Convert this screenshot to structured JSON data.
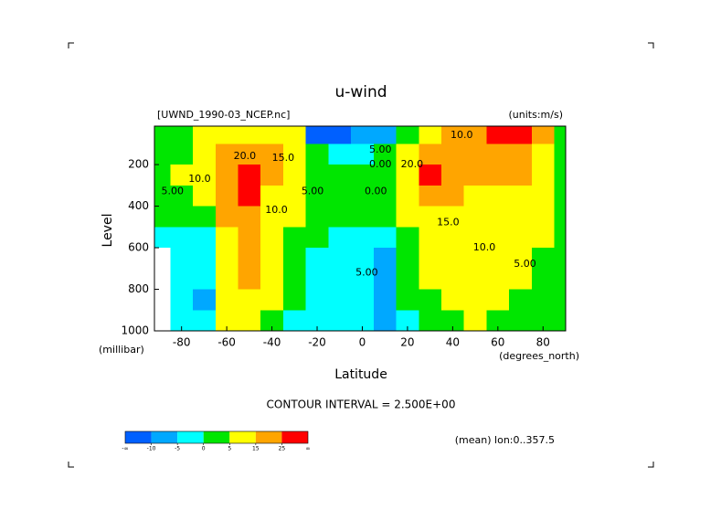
{
  "chart_data": {
    "type": "contour",
    "title": "u-wind",
    "dataset": "[UWND_1990-03_NCEP.nc]",
    "units": "(units:m/s)",
    "x_label": "Latitude",
    "x_unit": "(degrees_north)",
    "y_label": "Level",
    "y_unit": "(millibar)",
    "contour_interval": "CONTOUR INTERVAL = 2.500E+00",
    "note": "(mean) lon:0..357.5",
    "xlim": [
      -92,
      90
    ],
    "ylim": [
      15,
      1000
    ],
    "xticks": [
      -80,
      -60,
      -40,
      -20,
      0,
      20,
      40,
      60,
      80
    ],
    "yticks": [
      200,
      400,
      600,
      800,
      1000
    ],
    "x": [
      -90,
      -80,
      -70,
      -60,
      -50,
      -40,
      -30,
      -20,
      -10,
      0,
      10,
      20,
      30,
      40,
      50,
      60,
      70,
      80,
      90
    ],
    "y": [
      50,
      150,
      250,
      350,
      450,
      550,
      650,
      750,
      850,
      950
    ],
    "z": [
      [
        2,
        3,
        5,
        10,
        14,
        10,
        6,
        -12,
        -12,
        -10,
        -6,
        3,
        12,
        18,
        20,
        25,
        30,
        20,
        4
      ],
      [
        2,
        4,
        7,
        17,
        22,
        18,
        12,
        3,
        -2,
        -2,
        2,
        8,
        24,
        20,
        18,
        20,
        22,
        14,
        4
      ],
      [
        2,
        5,
        9,
        20,
        27,
        16,
        10,
        4,
        1,
        1,
        3,
        10,
        28,
        20,
        16,
        15,
        16,
        10,
        3
      ],
      [
        1,
        4,
        7,
        18,
        26,
        13,
        7,
        3,
        1,
        1,
        2,
        7,
        18,
        17,
        14,
        12,
        12,
        8,
        3
      ],
      [
        1,
        3,
        4,
        16,
        22,
        11,
        5,
        2,
        0,
        0,
        1,
        5,
        12,
        13,
        12,
        10,
        9,
        6,
        2
      ],
      [
        -2,
        -3,
        -2,
        14,
        18,
        9,
        4,
        1,
        -1,
        -2,
        -2,
        3,
        9,
        10,
        10,
        9,
        7,
        5,
        2
      ],
      [
        null,
        -3,
        -3,
        13,
        16,
        8,
        3,
        -1,
        -2,
        -3,
        -6,
        2,
        7,
        8,
        9,
        8,
        6,
        4,
        2
      ],
      [
        null,
        -4,
        -5,
        11,
        15,
        7,
        2,
        -2,
        -3,
        -4,
        -8,
        1,
        5,
        7,
        8,
        7,
        5,
        3,
        1
      ],
      [
        null,
        -4,
        -6,
        9,
        12,
        6,
        1,
        -3,
        -3,
        -4,
        -8,
        0,
        3,
        5,
        7,
        6,
        4,
        2,
        1
      ],
      [
        null,
        -3,
        -3,
        5,
        8,
        4,
        -1,
        -3,
        -2,
        -3,
        -6,
        -1,
        2,
        3,
        6,
        4,
        3,
        2,
        1
      ]
    ],
    "colorbar": {
      "ticks": [
        -10,
        -5,
        0,
        5,
        15,
        25
      ],
      "low_label": "-∞",
      "high_label": "∞",
      "colors": [
        "#0060ff",
        "#00a8ff",
        "#00ffff",
        "#00e600",
        "#ffff00",
        "#ffa500",
        "#ff0000"
      ]
    },
    "annotations": [
      {
        "text": "20.0",
        "x": -52,
        "y": 160
      },
      {
        "text": "15.0",
        "x": -35,
        "y": 170
      },
      {
        "text": "10.0",
        "x": -72,
        "y": 270
      },
      {
        "text": "5.00",
        "x": -84,
        "y": 330
      },
      {
        "text": "10.0",
        "x": -38,
        "y": 420
      },
      {
        "text": "5.00",
        "x": -22,
        "y": 330
      },
      {
        "text": "0.00",
        "x": 6,
        "y": 330
      },
      {
        "text": "5.00",
        "x": 2,
        "y": 720
      },
      {
        "text": "5.00",
        "x": 8,
        "y": 130
      },
      {
        "text": "0.00",
        "x": 8,
        "y": 200
      },
      {
        "text": "20.0",
        "x": 22,
        "y": 200
      },
      {
        "text": "15.0",
        "x": 38,
        "y": 480
      },
      {
        "text": "10.0",
        "x": 54,
        "y": 600
      },
      {
        "text": "5.00",
        "x": 72,
        "y": 680
      },
      {
        "text": "10.0",
        "x": 44,
        "y": 60
      }
    ]
  }
}
